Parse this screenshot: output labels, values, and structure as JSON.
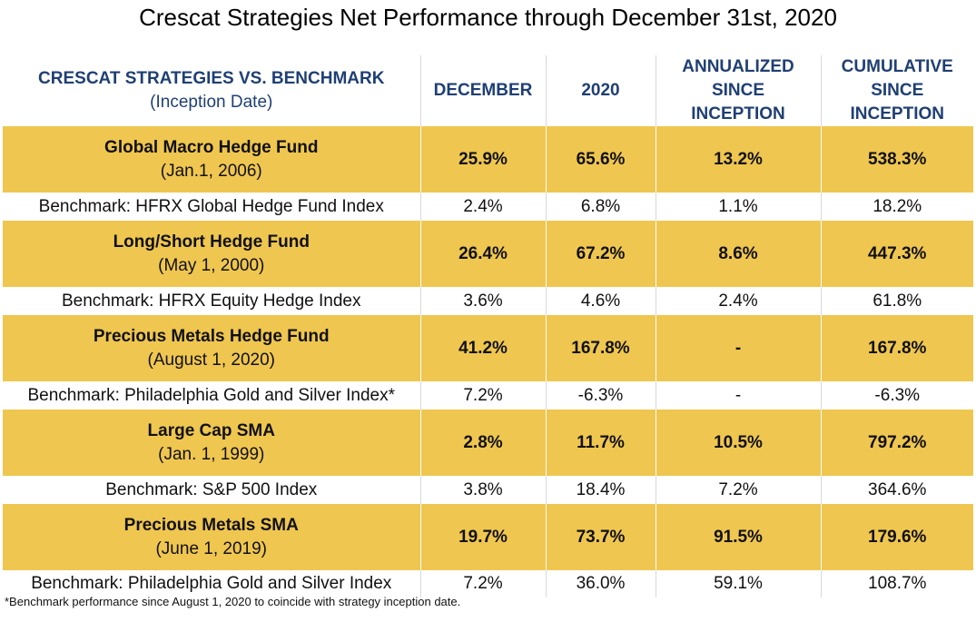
{
  "title": "Crescat Strategies Net Performance through December 31st, 2020",
  "header": {
    "col0_title": "CRESCAT STRATEGIES VS. BENCHMARK",
    "col0_sub": "(Inception Date)",
    "col1": "DECEMBER",
    "col2": "2020",
    "col3_l1": "ANNUALIZED",
    "col3_l2": "SINCE",
    "col3_l3": "INCEPTION",
    "col4_l1": "CUMULATIVE",
    "col4_l2": "SINCE",
    "col4_l3": "INCEPTION"
  },
  "rows": [
    {
      "fund": {
        "name": "Global Macro Hedge Fund",
        "date": "(Jan.1, 2006)",
        "dec": "25.9%",
        "y2020": "65.6%",
        "annualized": "13.2%",
        "cumulative": "538.3%"
      },
      "bench": {
        "name": "Benchmark: HFRX Global Hedge Fund Index",
        "dec": "2.4%",
        "y2020": "6.8%",
        "annualized": "1.1%",
        "cumulative": "18.2%"
      }
    },
    {
      "fund": {
        "name": "Long/Short Hedge Fund",
        "date": "(May 1, 2000)",
        "dec": "26.4%",
        "y2020": "67.2%",
        "annualized": "8.6%",
        "cumulative": "447.3%"
      },
      "bench": {
        "name": "Benchmark: HFRX Equity Hedge Index",
        "dec": "3.6%",
        "y2020": "4.6%",
        "annualized": "2.4%",
        "cumulative": "61.8%"
      }
    },
    {
      "fund": {
        "name": "Precious Metals Hedge Fund",
        "date": "(August 1, 2020)",
        "dec": "41.2%",
        "y2020": "167.8%",
        "annualized": "-",
        "cumulative": "167.8%"
      },
      "bench": {
        "name": "Benchmark: Philadelphia Gold and Silver Index*",
        "dec": "7.2%",
        "y2020": "-6.3%",
        "annualized": "-",
        "cumulative": "-6.3%"
      }
    },
    {
      "fund": {
        "name": "Large Cap SMA",
        "date": "(Jan. 1, 1999)",
        "dec": "2.8%",
        "y2020": "11.7%",
        "annualized": "10.5%",
        "cumulative": "797.2%"
      },
      "bench": {
        "name": "Benchmark: S&P 500 Index",
        "dec": "3.8%",
        "y2020": "18.4%",
        "annualized": "7.2%",
        "cumulative": "364.6%"
      }
    },
    {
      "fund": {
        "name": "Precious Metals SMA",
        "date": "(June 1, 2019)",
        "dec": "19.7%",
        "y2020": "73.7%",
        "annualized": "91.5%",
        "cumulative": "179.6%"
      },
      "bench": {
        "name": "Benchmark: Philadelphia Gold and Silver Index",
        "dec": "7.2%",
        "y2020": "36.0%",
        "annualized": "59.1%",
        "cumulative": "108.7%"
      }
    }
  ],
  "footnote": "*Benchmark performance since August 1, 2020 to coincide with strategy inception date.",
  "colors": {
    "header_text": "#1f3f74",
    "fund_row_bg": "#efc650",
    "bench_row_bg": "#ffffff"
  }
}
